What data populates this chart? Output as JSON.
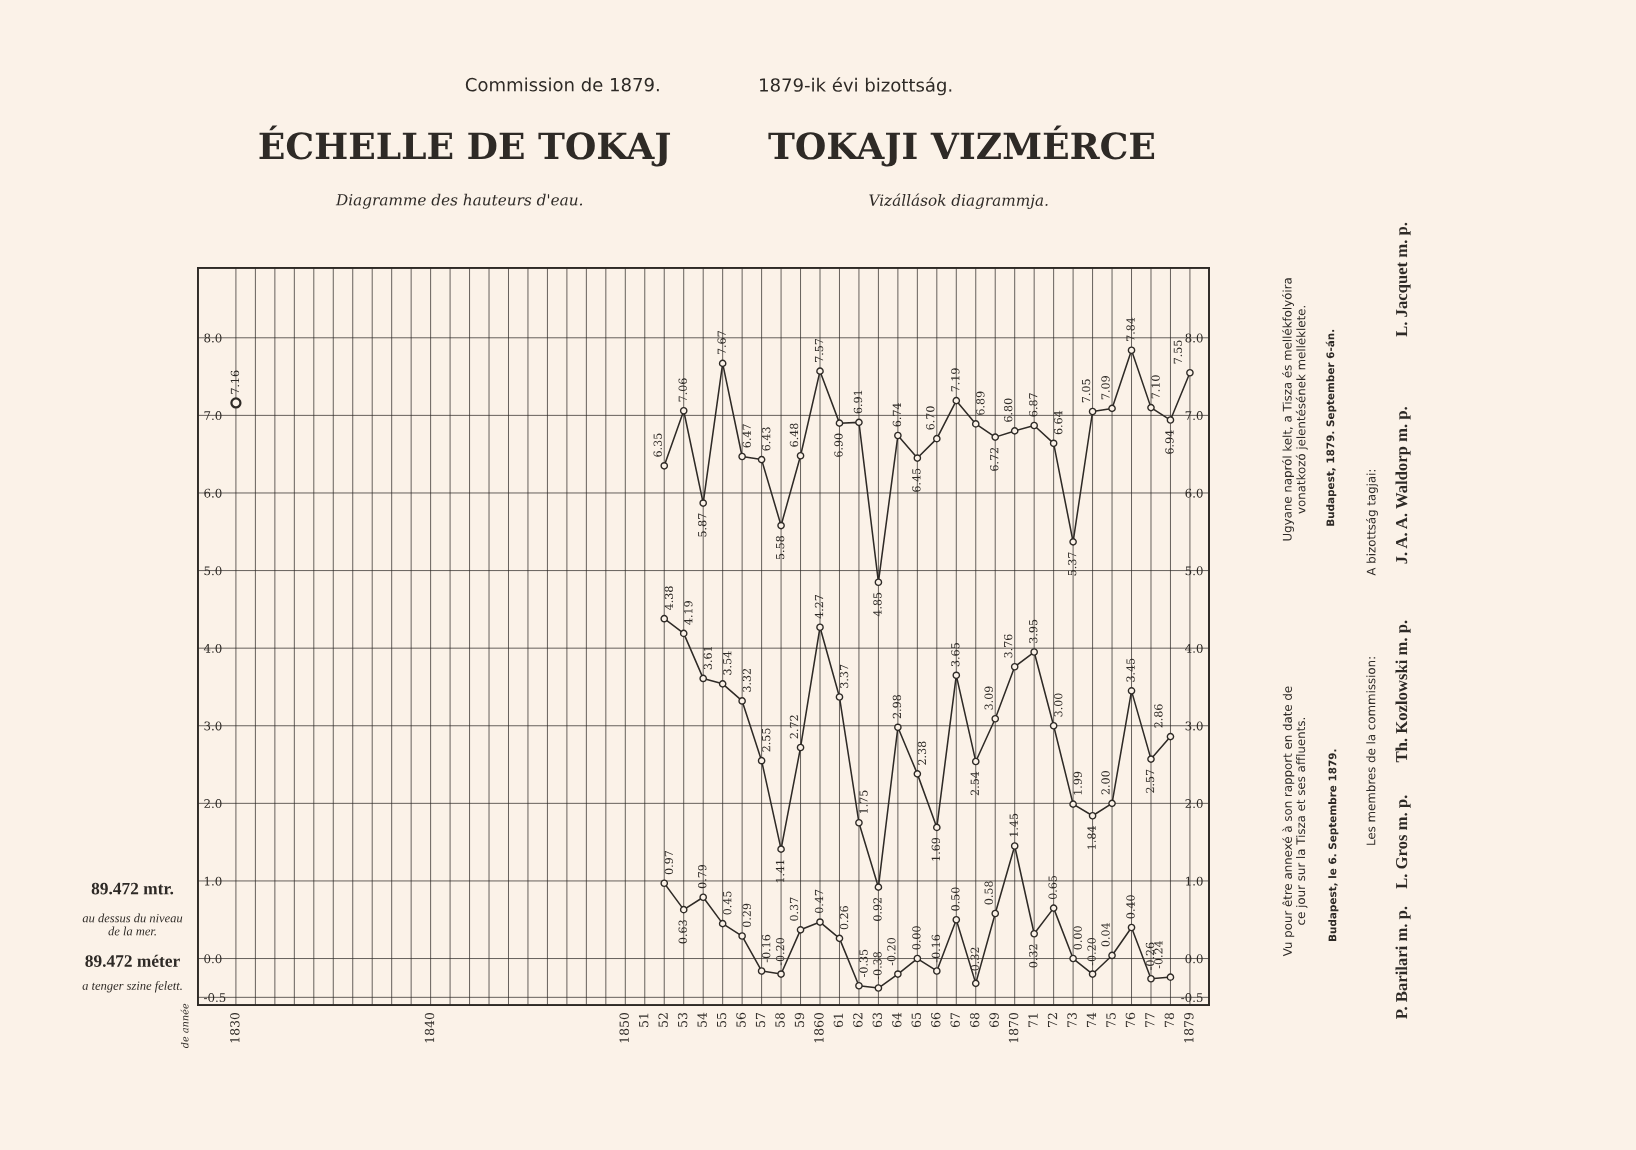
{
  "chart_data": {
    "type": "line",
    "title": "ÉCHELLE DE TOKAJ",
    "subtitle": "Diagramme des hauteurs d'eau.",
    "annotations": [
      "Commission de 1879.",
      "1879-ik évi bizottság.",
      "TOKAJI VIZMÉRCE",
      "Vizállások diagrammja.",
      "89.472 mtr.",
      "au dessus du niveau\nde la mer.",
      "89.472 méter",
      "a tenger szine felett.",
      "Vu pour être annexé à son rapport en date de\nce jour sur la Tisza et ses affluents.",
      "Budapest, le 6. Septembre 1879.",
      "Ugyane napról kelt, a Tisza és mellékfolyóira\nvonatkozó jelentésének melléklete.",
      "Budapest, 1879. September 6-án.",
      "Les membres de la commission:",
      "A bizottság tagjai:",
      "P. Barilari m. p.",
      "L. Gros m. p.",
      "Th. Kozlowski m. p.",
      "J. A. A. Waldorp m. p.",
      "L. Jacquet m. p.",
      "de année"
    ],
    "categories": [
      "1830",
      null,
      null,
      null,
      null,
      null,
      null,
      null,
      null,
      null,
      "1840",
      null,
      null,
      null,
      null,
      null,
      null,
      null,
      null,
      null,
      "1850",
      "51",
      "52",
      "53",
      "54",
      "55",
      "56",
      "57",
      "58",
      "59",
      "1860",
      "61",
      "62",
      "63",
      "64",
      "65",
      "66",
      "67",
      "68",
      "69",
      "1870",
      "71",
      "72",
      "73",
      "74",
      "75",
      "76",
      "77",
      "78",
      "1879"
    ],
    "series": [
      {
        "type": "scatter",
        "color": "#2e2a26",
        "values": [
          7.16,
          null,
          null,
          null,
          null,
          null,
          null,
          null,
          null,
          null,
          null,
          null,
          null,
          null,
          null,
          null,
          null,
          null,
          null,
          null,
          null,
          null,
          null,
          null,
          null,
          null,
          null,
          null,
          null,
          null,
          null,
          null,
          null,
          null,
          null,
          null,
          null,
          null,
          null,
          null,
          null,
          null,
          null,
          null,
          null,
          null,
          null,
          null,
          null,
          null
        ],
        "value_labels": [
          "7.16",
          null,
          null,
          null,
          null,
          null,
          null,
          null,
          null,
          null,
          null,
          null,
          null,
          null,
          null,
          null,
          null,
          null,
          null,
          null,
          null,
          null,
          null,
          null,
          null,
          null,
          null,
          null,
          null,
          null,
          null,
          null,
          null,
          null,
          null,
          null,
          null,
          null,
          null,
          null,
          null,
          null,
          null,
          null,
          null,
          null,
          null,
          null,
          null,
          null
        ]
      },
      {
        "color": "#2e2a26",
        "values": [
          null,
          null,
          null,
          null,
          null,
          null,
          null,
          null,
          null,
          null,
          null,
          null,
          null,
          null,
          null,
          null,
          null,
          null,
          null,
          null,
          null,
          null,
          6.35,
          7.06,
          5.87,
          7.67,
          6.47,
          6.43,
          5.58,
          6.48,
          7.57,
          6.9,
          6.91,
          4.85,
          6.74,
          6.45,
          6.7,
          7.19,
          6.89,
          6.72,
          6.8,
          6.87,
          6.64,
          5.37,
          7.05,
          7.09,
          7.84,
          7.1,
          6.94,
          7.55
        ],
        "value_labels": [
          null,
          null,
          null,
          null,
          null,
          null,
          null,
          null,
          null,
          null,
          null,
          null,
          null,
          null,
          null,
          null,
          null,
          null,
          null,
          null,
          null,
          null,
          "6.35",
          "7.06",
          "5.87",
          "7.67",
          "6.47",
          "6.43",
          "5.58",
          "6.48",
          "7.57",
          "6.90",
          "6.91",
          "4.85",
          "6.74",
          "6.45",
          "6.70",
          "7.19",
          "6.89",
          "6.72",
          "6.80",
          "6.87",
          "6.64",
          "5.37",
          "7.05",
          "7.09",
          "7.84",
          "7.10",
          "6.94",
          "7.55"
        ]
      },
      {
        "color": "#2e2a26",
        "values": [
          null,
          null,
          null,
          null,
          null,
          null,
          null,
          null,
          null,
          null,
          null,
          null,
          null,
          null,
          null,
          null,
          null,
          null,
          null,
          null,
          null,
          null,
          4.38,
          4.19,
          3.61,
          3.54,
          3.32,
          2.55,
          1.41,
          2.72,
          4.27,
          3.37,
          1.75,
          0.92,
          2.98,
          2.38,
          1.69,
          3.65,
          2.54,
          3.09,
          3.76,
          3.95,
          3.0,
          1.99,
          1.84,
          2.0,
          3.45,
          2.57,
          2.86,
          null
        ],
        "value_labels": [
          null,
          null,
          null,
          null,
          null,
          null,
          null,
          null,
          null,
          null,
          null,
          null,
          null,
          null,
          null,
          null,
          null,
          null,
          null,
          null,
          null,
          null,
          "4.38",
          "4.19",
          "3.61",
          "3.54",
          "3.32",
          "2.55",
          "1.41",
          "2.72",
          "4.27",
          "3.37",
          "1.75",
          "0.92",
          "2.98",
          "2.38",
          "1.69",
          "3.65",
          "2.54",
          "3.09",
          "3.76",
          "3.95",
          "3.00",
          "1.99",
          "1.84",
          "2.00",
          "3.45",
          "2.57",
          "2.86",
          null
        ]
      },
      {
        "color": "#2e2a26",
        "values": [
          null,
          null,
          null,
          null,
          null,
          null,
          null,
          null,
          null,
          null,
          null,
          null,
          null,
          null,
          null,
          null,
          null,
          null,
          null,
          null,
          null,
          null,
          0.97,
          0.63,
          0.79,
          0.45,
          0.29,
          -0.16,
          -0.2,
          0.37,
          0.47,
          0.26,
          -0.35,
          -0.38,
          -0.2,
          0.0,
          -0.16,
          0.5,
          -0.32,
          0.58,
          1.45,
          0.32,
          0.65,
          0.0,
          -0.2,
          0.04,
          0.4,
          -0.26,
          -0.24,
          null
        ],
        "value_labels": [
          null,
          null,
          null,
          null,
          null,
          null,
          null,
          null,
          null,
          null,
          null,
          null,
          null,
          null,
          null,
          null,
          null,
          null,
          null,
          null,
          null,
          null,
          "0.97",
          "0.63",
          "0.79",
          "0.45",
          "0.29",
          "-0.16",
          "-0.20",
          "0.37",
          "0.47",
          "0.26",
          "-0.35",
          "-0.38",
          "-0.20",
          "0.00",
          "-0.16",
          "0.50",
          "-0.32",
          "0.58",
          "1.45",
          "0.32",
          "0.65",
          "0.00",
          "-0.20",
          "0.04",
          "0.40",
          "-0.26",
          "-0.24",
          null
        ]
      }
    ],
    "ylim": [
      -0.6,
      8.9
    ],
    "yticks": [
      {
        "value": -0.5,
        "label": "-0.5"
      },
      {
        "value": 0,
        "label": "0.0"
      },
      {
        "value": 1,
        "label": "1.0"
      },
      {
        "value": 2,
        "label": "2.0"
      },
      {
        "value": 3,
        "label": "3.0"
      },
      {
        "value": 4,
        "label": "4.0"
      },
      {
        "value": 5,
        "label": "5.0"
      },
      {
        "value": 6,
        "label": "6.0"
      },
      {
        "value": 7,
        "label": "7.0"
      },
      {
        "value": 8,
        "label": "8.0"
      }
    ],
    "y2lim": [
      -0.6,
      8.9
    ],
    "y2ticks": [
      {
        "value": -0.5,
        "label": "-0.5"
      },
      {
        "value": 0,
        "label": "0.0"
      },
      {
        "value": 1,
        "label": "1.0"
      },
      {
        "value": 2,
        "label": "2.0"
      },
      {
        "value": 3,
        "label": "3.0"
      },
      {
        "value": 4,
        "label": "4.0"
      },
      {
        "value": 5,
        "label": "5.0"
      },
      {
        "value": 6,
        "label": "6.0"
      },
      {
        "value": 7,
        "label": "7.0"
      },
      {
        "value": 8,
        "label": "8.0"
      }
    ],
    "grid": true,
    "marker": "circle",
    "line_style": "solid"
  }
}
